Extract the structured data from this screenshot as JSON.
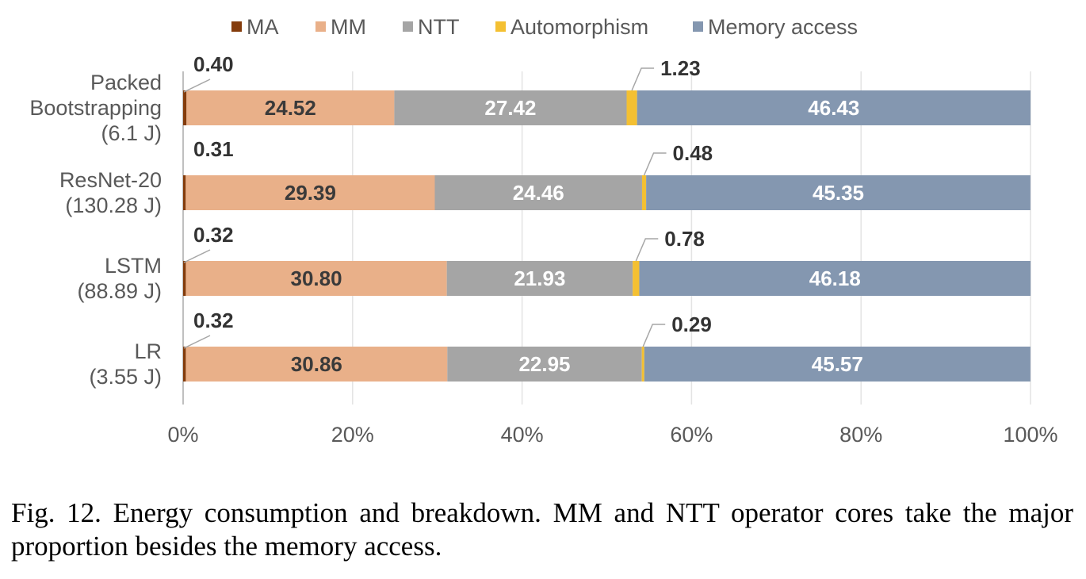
{
  "chart_data": {
    "type": "bar",
    "orientation": "horizontal",
    "stacked": "percent",
    "categories": [
      [
        "Packed",
        "Bootstrapping",
        "(6.1 J)"
      ],
      [
        "ResNet-20",
        "(130.28 J)"
      ],
      [
        "LSTM",
        "(88.89 J)"
      ],
      [
        "LR",
        "(3.55 J)"
      ]
    ],
    "series": [
      {
        "name": "MA",
        "color": "#843c0c",
        "values": [
          0.4,
          0.31,
          0.32,
          0.32
        ]
      },
      {
        "name": "MM",
        "color": "#e9b089",
        "values": [
          24.52,
          29.39,
          30.8,
          30.86
        ]
      },
      {
        "name": "NTT",
        "color": "#a5a5a5",
        "values": [
          27.42,
          24.46,
          21.93,
          22.95
        ]
      },
      {
        "name": "Automorphism",
        "color": "#f4c032",
        "values": [
          1.23,
          0.48,
          0.78,
          0.29
        ]
      },
      {
        "name": "Memory access",
        "color": "#8497b0",
        "values": [
          46.43,
          45.35,
          46.18,
          45.57
        ]
      }
    ],
    "data_labels": {
      "MA": [
        "0.40",
        "0.31",
        "0.32",
        "0.32"
      ],
      "MM": [
        "24.52",
        "29.39",
        "30.80",
        "30.86"
      ],
      "NTT": [
        "27.42",
        "24.46",
        "21.93",
        "22.95"
      ],
      "Automorphism": [
        "1.23",
        "0.48",
        "0.78",
        "0.29"
      ],
      "Memory access": [
        "46.43",
        "45.35",
        "46.18",
        "45.57"
      ]
    },
    "xticks": [
      "0%",
      "20%",
      "40%",
      "60%",
      "80%",
      "100%"
    ],
    "xlim": [
      0,
      100
    ],
    "grid": true,
    "legend_position": "top",
    "title": "",
    "xlabel": "",
    "ylabel": ""
  },
  "caption": "Fig. 12.  Energy consumption and breakdown. MM and NTT operator cores take the major proportion besides the memory access."
}
